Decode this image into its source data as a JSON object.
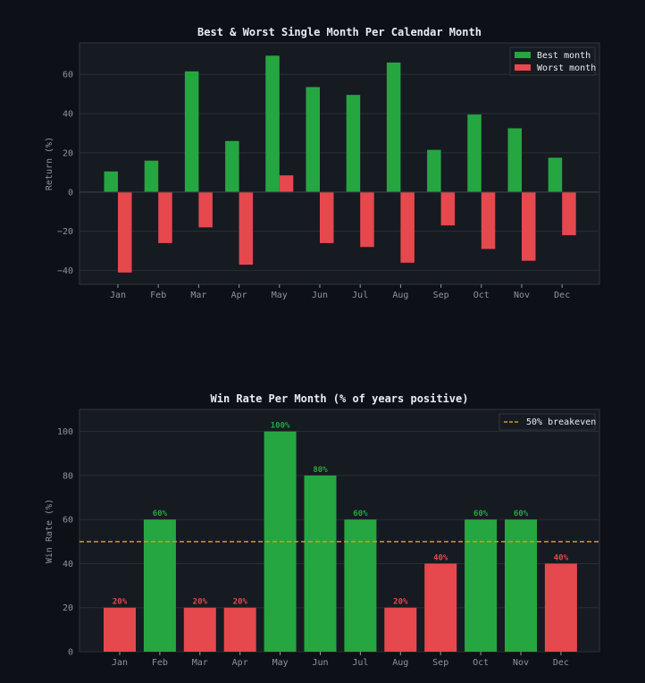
{
  "colors": {
    "background": "#0d1117",
    "panel": "#161b22",
    "green": "#26a641",
    "red": "#e5484d",
    "breakeven": "#d29922"
  },
  "chart_data": [
    {
      "type": "bar",
      "title": "Best & Worst Single Month Per Calendar Month",
      "ylabel": "Return (%)",
      "categories": [
        "Jan",
        "Feb",
        "Mar",
        "Apr",
        "May",
        "Jun",
        "Jul",
        "Aug",
        "Sep",
        "Oct",
        "Nov",
        "Dec"
      ],
      "series": [
        {
          "name": "Best month",
          "color": "#26a641",
          "values": [
            10.5,
            16,
            61.5,
            26,
            69.5,
            53.5,
            49.5,
            66,
            21.5,
            39.5,
            32.5,
            17.5
          ]
        },
        {
          "name": "Worst month",
          "color": "#e5484d",
          "values": [
            -41,
            -26,
            -18,
            -37,
            8.5,
            -26,
            -28,
            -36,
            -17,
            -29,
            -35,
            -22
          ]
        }
      ],
      "yticks": [
        -40,
        -20,
        0,
        20,
        40,
        60
      ],
      "ylim": [
        -47,
        76
      ],
      "grid": true,
      "legend": "top-right"
    },
    {
      "type": "bar",
      "title": "Win Rate Per Month (% of years positive)",
      "ylabel": "Win Rate (%)",
      "categories": [
        "Jan",
        "Feb",
        "Mar",
        "Apr",
        "May",
        "Jun",
        "Jul",
        "Aug",
        "Sep",
        "Oct",
        "Nov",
        "Dec"
      ],
      "values": [
        20,
        60,
        20,
        20,
        100,
        80,
        60,
        20,
        40,
        60,
        60,
        40
      ],
      "labels": [
        "20%",
        "60%",
        "20%",
        "20%",
        "100%",
        "80%",
        "60%",
        "20%",
        "40%",
        "60%",
        "60%",
        "40%"
      ],
      "threshold": 50,
      "reference_line": {
        "value": 50,
        "name": "50% breakeven",
        "style": "dashed"
      },
      "yticks": [
        0,
        20,
        40,
        60,
        80,
        100
      ],
      "ylim": [
        0,
        110
      ],
      "grid": true,
      "legend": "top-right"
    }
  ]
}
